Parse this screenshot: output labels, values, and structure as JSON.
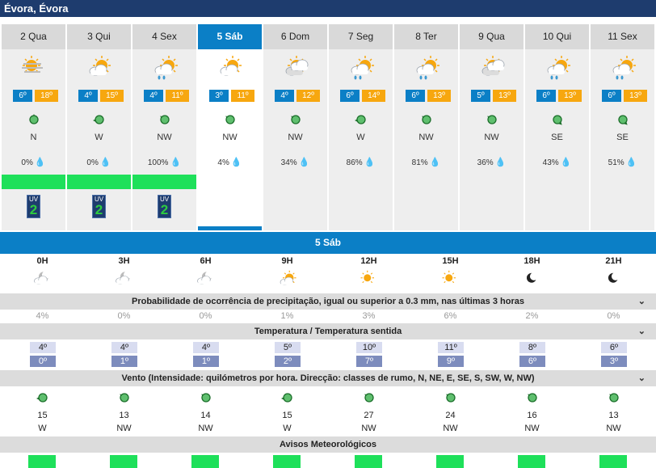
{
  "location": "Évora, Évora",
  "days": [
    {
      "label": "2 Qua",
      "icon": "sun-haze-icon",
      "tmin": "6º",
      "tmax": "18º",
      "wind_dir": "N",
      "precip": "0%",
      "drop": "grey",
      "warning": "green",
      "uv": "2"
    },
    {
      "label": "3 Qui",
      "icon": "partly-cloudy-icon",
      "tmin": "4º",
      "tmax": "15º",
      "wind_dir": "W",
      "precip": "0%",
      "drop": "grey",
      "warning": "green",
      "uv": "2"
    },
    {
      "label": "4 Sex",
      "icon": "partly-cloudy-rain-icon",
      "tmin": "4º",
      "tmax": "11º",
      "wind_dir": "NW",
      "precip": "100%",
      "drop": "blue",
      "warning": "green",
      "uv": "2"
    },
    {
      "label": "5 Sáb",
      "icon": "partly-cloudy-icon",
      "tmin": "3º",
      "tmax": "11º",
      "wind_dir": "NW",
      "precip": "4%",
      "drop": "grey",
      "selected": true
    },
    {
      "label": "6 Dom",
      "icon": "cloudy-sun-icon",
      "tmin": "4º",
      "tmax": "12º",
      "wind_dir": "NW",
      "precip": "34%",
      "drop": "blue"
    },
    {
      "label": "7 Seg",
      "icon": "partly-cloudy-rain-icon",
      "tmin": "6º",
      "tmax": "14º",
      "wind_dir": "W",
      "precip": "86%",
      "drop": "blue"
    },
    {
      "label": "8 Ter",
      "icon": "partly-cloudy-rain-icon",
      "tmin": "6º",
      "tmax": "13º",
      "wind_dir": "NW",
      "precip": "81%",
      "drop": "blue"
    },
    {
      "label": "9 Qua",
      "icon": "cloudy-sun-icon",
      "tmin": "5º",
      "tmax": "13º",
      "wind_dir": "NW",
      "precip": "36%",
      "drop": "blue"
    },
    {
      "label": "10 Qui",
      "icon": "partly-cloudy-rain-icon",
      "tmin": "6º",
      "tmax": "13º",
      "wind_dir": "SE",
      "precip": "43%",
      "drop": "blue"
    },
    {
      "label": "11 Sex",
      "icon": "partly-cloudy-rain-icon",
      "tmin": "6º",
      "tmax": "13º",
      "wind_dir": "SE",
      "precip": "51%",
      "drop": "blue"
    }
  ],
  "detail": {
    "title": "5 Sáb",
    "hours": [
      "0H",
      "3H",
      "6H",
      "9H",
      "12H",
      "15H",
      "18H",
      "21H"
    ],
    "hour_icons": [
      "cloudy-night-icon",
      "cloudy-night-icon",
      "cloudy-night-icon",
      "partly-cloudy-icon",
      "sun-icon",
      "sun-icon",
      "moon-icon",
      "moon-icon"
    ],
    "precip_title": "Probabilidade de ocorrência de precipitação, igual ou superior a 0.3 mm, nas últimas 3 horas",
    "precip": [
      "4%",
      "0%",
      "0%",
      "1%",
      "3%",
      "6%",
      "2%",
      "0%"
    ],
    "temp_title": "Temperatura / Temperatura sentida",
    "temp": [
      "4º",
      "4º",
      "4º",
      "5º",
      "10º",
      "11º",
      "8º",
      "6º"
    ],
    "feels": [
      "0º",
      "1º",
      "1º",
      "2º",
      "7º",
      "9º",
      "6º",
      "3º"
    ],
    "wind_title": "Vento (Intensidade: quilómetros por hora. Direcção: classes de rumo, N, NE, E, SE, S, SW, W, NW)",
    "wind_speed": [
      "15",
      "13",
      "14",
      "15",
      "27",
      "24",
      "16",
      "13"
    ],
    "wind_dir": [
      "W",
      "NW",
      "NW",
      "W",
      "NW",
      "NW",
      "NW",
      "NW"
    ],
    "warn_title": "Avisos Meteorológicos",
    "warnings": [
      "green",
      "green",
      "green",
      "green",
      "green",
      "green",
      "green",
      "green"
    ]
  },
  "colors": {
    "header": "#1e3c6e",
    "accent": "#0b7fc6",
    "tmax": "#f7a70f",
    "warning_green": "#1ee05a",
    "feels": "#7d8cbd"
  }
}
